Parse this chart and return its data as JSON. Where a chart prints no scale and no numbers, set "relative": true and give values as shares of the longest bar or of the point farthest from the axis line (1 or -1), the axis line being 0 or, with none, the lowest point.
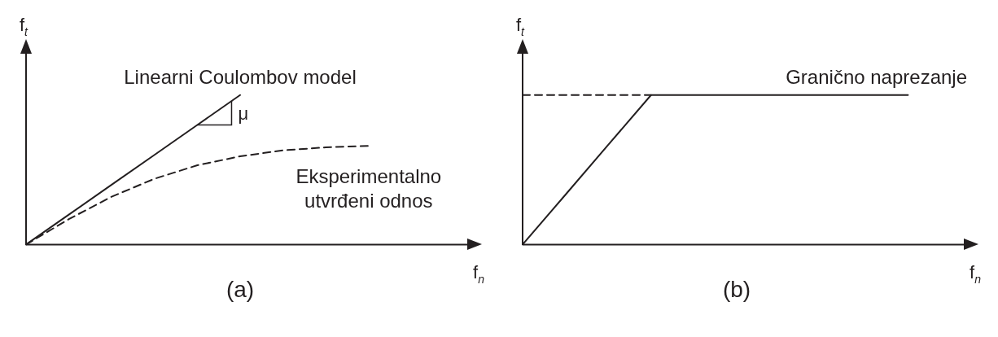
{
  "chart_data": [
    {
      "type": "line",
      "title": "(a)",
      "xlabel": "f$_{n}$",
      "ylabel": "f$_{t}$",
      "relative": true,
      "marker": "none",
      "grid": false,
      "legend": false,
      "annotations": [
        "μ"
      ],
      "categories": [
        null,
        null,
        null,
        null,
        null,
        null,
        null,
        null,
        null,
        null,
        null
      ],
      "series": [
        {
          "name": "Linearni Coulombov model",
          "color": "#231f20",
          "line_style": "solid",
          "values": [
            0,
            0.2,
            0.4,
            0.6,
            0.8,
            1,
            null,
            null,
            null,
            null,
            null
          ]
        },
        {
          "name": "Eksperimentalno utvrđeni odnos",
          "color": "#231f20",
          "line_style": "dashed",
          "values": [
            0,
            0.17,
            0.32,
            0.44,
            0.53,
            0.59,
            0.63,
            0.65,
            0.66,
            null,
            null
          ]
        }
      ]
    },
    {
      "type": "line",
      "title": "(b)",
      "xlabel": "f$_{n}$",
      "ylabel": "f$_{t}$",
      "relative": true,
      "marker": "none",
      "grid": false,
      "legend": false,
      "categories": [
        null,
        null,
        null,
        null,
        null,
        null,
        null,
        null,
        null,
        null,
        null
      ],
      "series": [
        {
          "name": "Granično naprezanje",
          "color": "#231f20",
          "line_style": "solid",
          "values": [
            0,
            0.333,
            0.667,
            1,
            1,
            1,
            1,
            1,
            1,
            1,
            null
          ]
        },
        {
          "color": "#231f20",
          "line_style": "dashed",
          "values": [
            1,
            1,
            1,
            1,
            null,
            null,
            null,
            null,
            null,
            null,
            null
          ]
        }
      ]
    }
  ]
}
